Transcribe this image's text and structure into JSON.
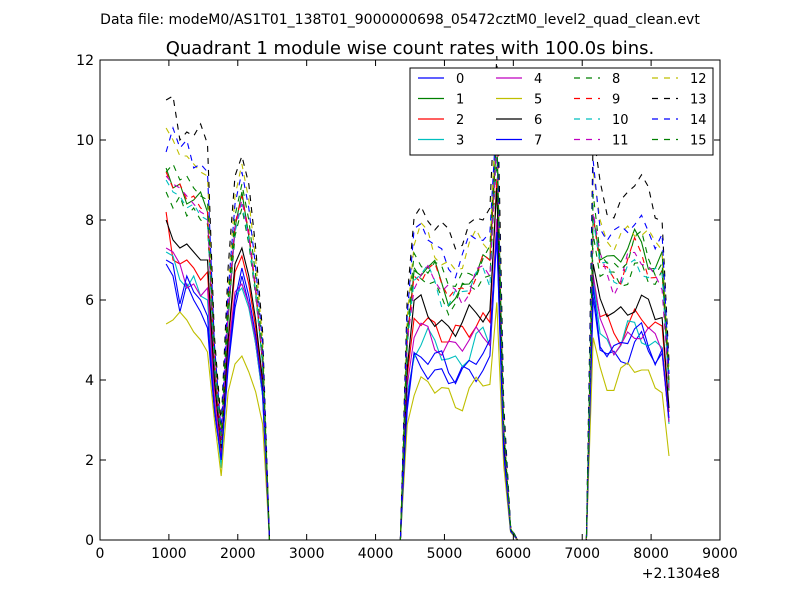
{
  "chart_data": {
    "type": "line",
    "suptitle": "Data file: modeM0/AS1T01_138T01_9000000698_05472cztM0_level2_quad_clean.evt",
    "title": "Quadrant 1 module wise count rates with 100.0s bins.",
    "xlabel": "",
    "ylabel": "",
    "x_offset_label": "+2.1304e8",
    "xlim": [
      0,
      9000
    ],
    "ylim": [
      0,
      12
    ],
    "xticks": [
      0,
      1000,
      2000,
      3000,
      4000,
      5000,
      6000,
      7000,
      8000,
      9000
    ],
    "yticks": [
      0,
      2,
      4,
      6,
      8,
      10,
      12
    ],
    "legend_location": "top-right",
    "legend_columns": 4,
    "x": [
      960,
      1060,
      1160,
      1260,
      1360,
      1460,
      1560,
      1660,
      1760,
      1860,
      1960,
      2060,
      2160,
      2260,
      2360,
      2460,
      2560,
      2660,
      2760,
      2860,
      2960,
      3060,
      3160,
      3260,
      3360,
      3460,
      3560,
      3660,
      3760,
      3860,
      3960,
      4060,
      4160,
      4260,
      4360,
      4460,
      4560,
      4660,
      4760,
      4860,
      4960,
      5060,
      5160,
      5260,
      5360,
      5460,
      5560,
      5660,
      5760,
      5860,
      5960,
      6060,
      6160,
      6260,
      6360,
      6460,
      6560,
      6660,
      6760,
      6860,
      6960,
      7060,
      7160,
      7260,
      7360,
      7460,
      7560,
      7660,
      7760,
      7860,
      7960,
      8060,
      8160,
      8260
    ],
    "series": [
      {
        "name": "0",
        "color": "#0000ff",
        "dash": "solid",
        "profile": [
          6.9,
          6.6,
          5.7,
          6.4,
          6.0,
          5.7,
          5.3,
          3.2,
          2.0,
          4.3,
          5.8,
          6.6,
          5.9,
          4.9,
          3.6,
          0
        ]
      },
      {
        "name": "1",
        "color": "#008000",
        "dash": "solid",
        "profile": [
          9.3,
          8.8,
          8.9,
          8.4,
          8.5,
          8.7,
          8.2,
          4.3,
          2.4,
          5.5,
          7.8,
          8.7,
          7.6,
          6.2,
          4.4,
          0
        ]
      },
      {
        "name": "2",
        "color": "#ff0000",
        "dash": "solid",
        "profile": [
          8.2,
          7.0,
          6.9,
          7.0,
          6.8,
          6.5,
          6.7,
          3.9,
          2.2,
          4.9,
          6.7,
          7.1,
          6.4,
          5.3,
          3.9,
          0
        ]
      },
      {
        "name": "3",
        "color": "#00bfbf",
        "dash": "solid",
        "profile": [
          7.2,
          7.1,
          6.5,
          6.3,
          6.6,
          6.1,
          6.0,
          3.5,
          1.8,
          4.6,
          6.1,
          6.3,
          5.8,
          4.9,
          3.6,
          0
        ]
      },
      {
        "name": "4",
        "color": "#bf00bf",
        "dash": "solid",
        "profile": [
          7.3,
          7.2,
          6.9,
          6.3,
          6.4,
          6.1,
          6.3,
          3.6,
          2.0,
          4.7,
          6.2,
          6.4,
          5.9,
          5.0,
          3.7,
          0
        ]
      },
      {
        "name": "5",
        "color": "#bfbf00",
        "dash": "solid",
        "profile": [
          5.4,
          5.5,
          5.7,
          5.5,
          5.2,
          5.0,
          4.7,
          3.0,
          1.6,
          3.7,
          4.4,
          4.6,
          4.2,
          3.7,
          2.9,
          0
        ]
      },
      {
        "name": "6",
        "color": "#000000",
        "dash": "solid",
        "profile": [
          8.0,
          7.5,
          7.3,
          7.4,
          7.2,
          7.0,
          7.0,
          4.0,
          2.3,
          5.0,
          6.9,
          7.3,
          6.6,
          5.5,
          4.0,
          0
        ]
      },
      {
        "name": "7",
        "color": "#0000ff",
        "dash": "solid",
        "profile": [
          7.0,
          6.9,
          5.9,
          6.6,
          6.2,
          6.0,
          5.6,
          3.3,
          2.0,
          4.4,
          6.0,
          6.8,
          6.1,
          5.1,
          3.7,
          0
        ]
      },
      {
        "name": "8",
        "color": "#008000",
        "dash": "dashed",
        "profile": [
          8.7,
          8.3,
          8.6,
          8.1,
          8.3,
          8.0,
          7.9,
          4.4,
          2.5,
          5.6,
          7.6,
          8.3,
          7.4,
          6.1,
          4.4,
          0
        ]
      },
      {
        "name": "9",
        "color": "#ff0000",
        "dash": "dashed",
        "profile": [
          9.2,
          8.8,
          8.9,
          8.5,
          8.6,
          8.3,
          8.2,
          4.5,
          2.4,
          5.8,
          7.9,
          8.6,
          7.7,
          6.3,
          4.5,
          0
        ]
      },
      {
        "name": "10",
        "color": "#00bfbf",
        "dash": "dashed",
        "profile": [
          9.0,
          8.7,
          8.6,
          8.3,
          8.4,
          8.1,
          8.0,
          4.4,
          2.4,
          5.7,
          7.7,
          8.4,
          7.5,
          6.2,
          4.4,
          0
        ]
      },
      {
        "name": "11",
        "color": "#bf00bf",
        "dash": "dashed",
        "profile": [
          9.1,
          8.9,
          8.8,
          8.6,
          8.4,
          8.2,
          8.1,
          4.5,
          2.5,
          5.7,
          7.8,
          8.5,
          7.6,
          6.2,
          4.5,
          0
        ]
      },
      {
        "name": "12",
        "color": "#bfbf00",
        "dash": "dashed",
        "profile": [
          10.3,
          10.0,
          9.6,
          9.6,
          9.4,
          9.2,
          9.1,
          4.9,
          2.6,
          6.3,
          8.6,
          9.4,
          8.5,
          7.0,
          5.0,
          0
        ]
      },
      {
        "name": "13",
        "color": "#000000",
        "dash": "dashed",
        "profile": [
          11.0,
          11.1,
          10.0,
          10.2,
          10.1,
          10.4,
          9.9,
          5.1,
          2.9,
          6.8,
          9.1,
          9.6,
          8.9,
          7.3,
          5.2,
          0
        ]
      },
      {
        "name": "14",
        "color": "#0000ff",
        "dash": "dashed",
        "profile": [
          9.7,
          10.3,
          9.8,
          10.0,
          9.3,
          9.4,
          9.2,
          4.9,
          2.7,
          6.2,
          8.4,
          9.2,
          8.3,
          6.8,
          4.9,
          0
        ]
      },
      {
        "name": "15",
        "color": "#008000",
        "dash": "dashed",
        "profile": [
          9.2,
          9.4,
          9.0,
          9.1,
          8.8,
          8.6,
          8.5,
          4.7,
          2.6,
          6.0,
          8.1,
          8.9,
          8.0,
          6.6,
          4.7,
          0
        ]
      }
    ],
    "segments_note": "Rates are ~0 between 2500-4360 and 6000-7060; second orbit active 4460-5860, third orbit active 7160-8260 (values scaled per series)."
  }
}
